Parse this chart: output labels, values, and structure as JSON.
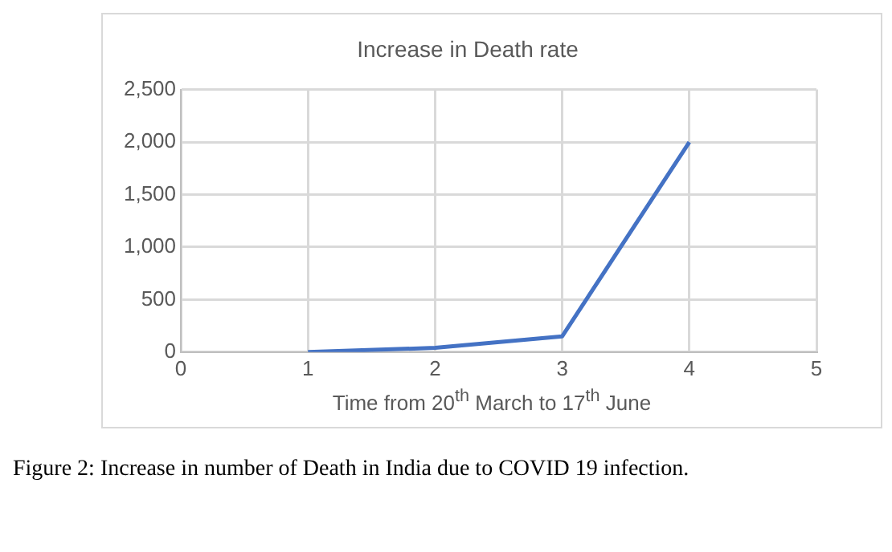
{
  "chart_data": {
    "type": "line",
    "title": "Increase in Death rate",
    "xlabel": "Time from 20$^{th}$ March to  17$^{th}$ June",
    "x": [
      1,
      2,
      3,
      4
    ],
    "values": [
      0,
      40,
      150,
      2000
    ],
    "color": "#4472c4",
    "xlim": [
      0,
      5
    ],
    "xticks": [
      0,
      1,
      2,
      3,
      4,
      5
    ],
    "ylim": [
      0,
      2500
    ],
    "yticks": [
      {
        "value": 0,
        "label": "0"
      },
      {
        "value": 500,
        "label": "500"
      },
      {
        "value": 1000,
        "label": "1,000"
      },
      {
        "value": 1500,
        "label": "1,500"
      },
      {
        "value": 2000,
        "label": "2,000"
      },
      {
        "value": 2500,
        "label": "2,500"
      }
    ],
    "grid": true,
    "marker": "none",
    "line_style": "solid",
    "annotations": [
      "Figure 2: Increase in number of Death in India due to COVID 19 infection."
    ]
  }
}
